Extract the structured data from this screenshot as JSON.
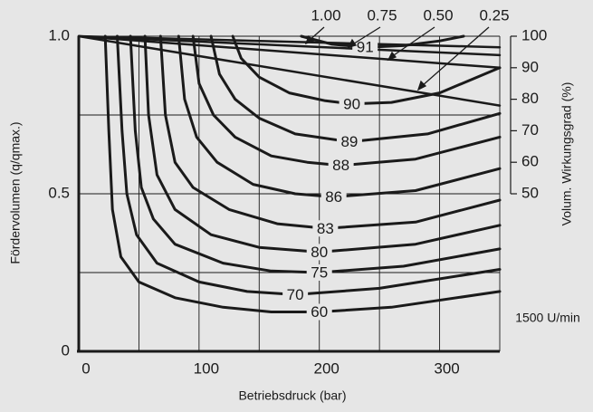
{
  "chart_data": {
    "type": "contour",
    "xlabel": "Betriebsdruck (bar)",
    "ylabel": "Fördervolumen (q/qmax.)",
    "y2label": "Volum. Wirkungsgrad (%)",
    "annotation": "1500 U/min",
    "xlim": [
      0,
      350
    ],
    "xticks": [
      0,
      100,
      200,
      300
    ],
    "xminor": [
      50,
      150,
      250,
      350
    ],
    "ylim": [
      0,
      1
    ],
    "yticks": [
      0,
      0.5,
      {
        "value": 1,
        "label": "1.0"
      }
    ],
    "yminor": [
      0.25,
      0.75
    ],
    "y2lim": [
      50,
      100
    ],
    "y2ticks": [
      50,
      60,
      70,
      80,
      90,
      100
    ],
    "grid": true,
    "color": "#1a1a1a",
    "contours": [
      {
        "level": 60,
        "x": [
          22,
          25,
          28,
          35,
          50,
          80,
          120,
          160,
          200,
          260,
          350
        ],
        "y": [
          1.0,
          0.7,
          0.45,
          0.3,
          0.22,
          0.17,
          0.14,
          0.125,
          0.125,
          0.14,
          0.19
        ]
      },
      {
        "level": 70,
        "x": [
          32,
          36,
          40,
          48,
          65,
          100,
          140,
          180,
          250,
          350
        ],
        "y": [
          1.0,
          0.7,
          0.5,
          0.37,
          0.28,
          0.22,
          0.19,
          0.18,
          0.2,
          0.26
        ]
      },
      {
        "level": 75,
        "x": [
          43,
          47,
          52,
          62,
          80,
          120,
          160,
          200,
          270,
          350
        ],
        "y": [
          1.0,
          0.7,
          0.52,
          0.42,
          0.34,
          0.28,
          0.255,
          0.25,
          0.27,
          0.325
        ]
      },
      {
        "level": 80,
        "x": [
          55,
          58,
          65,
          80,
          110,
          150,
          200,
          280,
          350
        ],
        "y": [
          1.0,
          0.75,
          0.56,
          0.45,
          0.37,
          0.33,
          0.315,
          0.34,
          0.4
        ]
      },
      {
        "level": 83,
        "x": [
          68,
          72,
          80,
          95,
          125,
          165,
          205,
          280,
          350
        ],
        "y": [
          1.0,
          0.75,
          0.6,
          0.52,
          0.45,
          0.405,
          0.39,
          0.41,
          0.48
        ]
      },
      {
        "level": 86,
        "x": [
          83,
          88,
          98,
          115,
          145,
          180,
          212,
          280,
          350
        ],
        "y": [
          1.0,
          0.8,
          0.68,
          0.6,
          0.53,
          0.5,
          0.49,
          0.51,
          0.58
        ]
      },
      {
        "level": 88,
        "x": [
          95,
          100,
          112,
          130,
          160,
          190,
          218,
          280,
          350
        ],
        "y": [
          1.0,
          0.85,
          0.75,
          0.68,
          0.62,
          0.6,
          0.59,
          0.61,
          0.68
        ]
      },
      {
        "level": 89,
        "x": [
          110,
          117,
          130,
          150,
          180,
          225,
          290,
          350
        ],
        "y": [
          1.0,
          0.88,
          0.8,
          0.74,
          0.69,
          0.665,
          0.69,
          0.755
        ]
      },
      {
        "level": 90,
        "x": [
          128,
          135,
          150,
          175,
          205,
          227,
          260,
          300,
          350
        ],
        "y": [
          1.0,
          0.93,
          0.87,
          0.82,
          0.795,
          0.785,
          0.79,
          0.82,
          0.9
        ]
      },
      {
        "level": 91,
        "x": [
          185,
          210,
          238,
          270,
          300,
          320
        ],
        "y": [
          1.0,
          0.975,
          0.965,
          0.97,
          0.985,
          1.0
        ]
      }
    ],
    "volumetric_lines": [
      {
        "label": "1.00",
        "x": [
          0,
          350
        ],
        "values": [
          100,
          96.5
        ],
        "axis": "y2"
      },
      {
        "label": "0.75",
        "x": [
          0,
          350
        ],
        "values": [
          100,
          94
        ],
        "axis": "y2"
      },
      {
        "label": "0.50",
        "x": [
          0,
          350
        ],
        "values": [
          100,
          90
        ],
        "axis": "y2"
      },
      {
        "label": "0.25",
        "x": [
          0,
          350
        ],
        "values": [
          100,
          78
        ],
        "axis": "y2"
      }
    ]
  }
}
